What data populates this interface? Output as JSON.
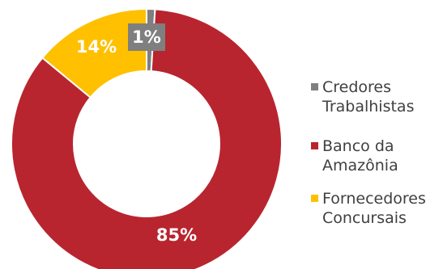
{
  "chart_data": {
    "type": "pie",
    "donut": true,
    "categories": [
      "Credores Trabalhistas",
      "Banco da Amazônia",
      "Fornecedores Concursais"
    ],
    "values": [
      1,
      85,
      14
    ],
    "labels": [
      "1%",
      "85%",
      "14%"
    ],
    "colors": [
      "#7f7f7f",
      "#b8252f",
      "#ffc000"
    ],
    "legend": {
      "position": "right",
      "entries": [
        [
          "Credores",
          "Trabalhistas"
        ],
        [
          "Banco da",
          "Amazônia"
        ],
        [
          "Fornecedores",
          "Concursais"
        ]
      ]
    }
  }
}
